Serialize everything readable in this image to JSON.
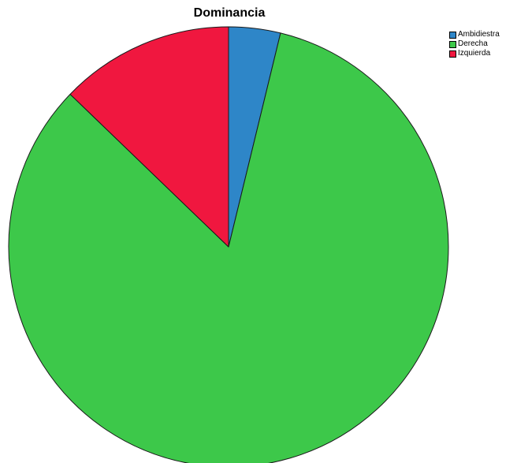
{
  "chart_data": {
    "type": "pie",
    "title": "Dominancia",
    "categories": [
      "Ambidiestra",
      "Derecha",
      "Izquierda"
    ],
    "values": [
      3.8,
      83.4,
      12.8
    ],
    "colors": [
      "#2e86c8",
      "#3dc84a",
      "#f0173f"
    ],
    "start_angle_deg": 0,
    "direction": "clockwise",
    "legend_position": "top-right"
  }
}
